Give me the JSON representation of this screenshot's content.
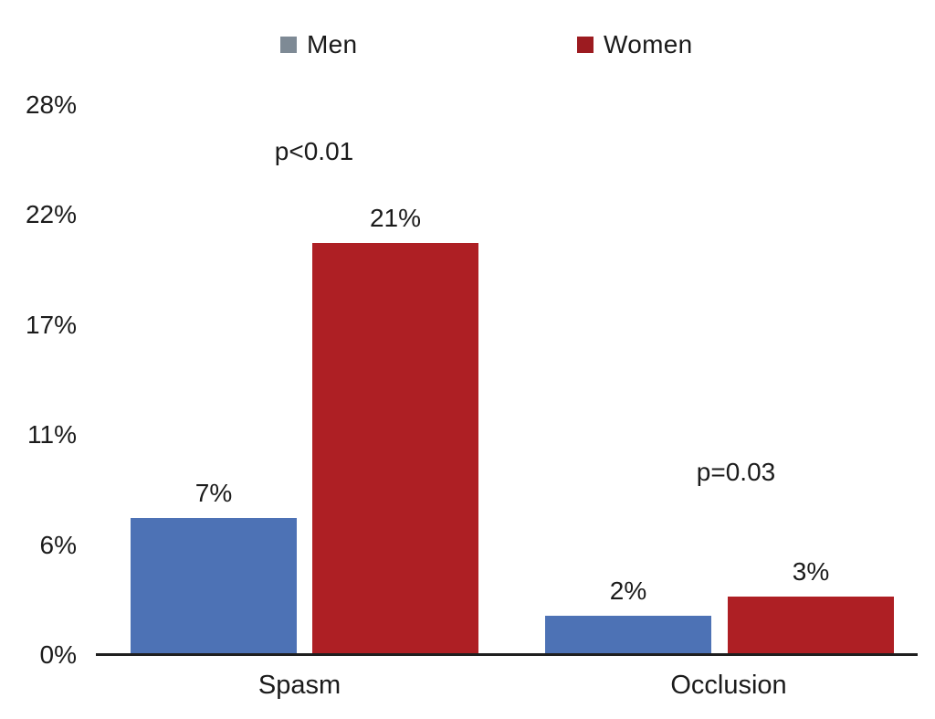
{
  "chart_data": {
    "type": "bar",
    "title": "",
    "xlabel": "",
    "ylabel": "",
    "categories": [
      "Spasm",
      "Occlusion"
    ],
    "series": [
      {
        "name": "Men",
        "values": [
          7,
          2
        ],
        "labels": [
          "7%",
          "2%"
        ],
        "bar_color": "#4d72b5",
        "legend_color": "#7e8a95"
      },
      {
        "name": "Women",
        "values": [
          21,
          3
        ],
        "labels": [
          "21%",
          "3%"
        ],
        "bar_color": "#ae1f24",
        "legend_color": "#9c1b20"
      }
    ],
    "annotations": [
      {
        "text": "p<0.01",
        "category": "Spasm"
      },
      {
        "text": "p=0.03",
        "category": "Occlusion"
      }
    ],
    "yticks": [
      0,
      6,
      11,
      17,
      22,
      28
    ],
    "ytick_labels": [
      "0%",
      "6%",
      "11%",
      "17%",
      "22%",
      "28%"
    ],
    "ylim": [
      0,
      28
    ],
    "value_suffix": "%",
    "legend_position": "top",
    "grid": false,
    "axis_color": "#1f1f1f",
    "text_color": "#1b1b1b",
    "background_color": "#ffffff"
  }
}
